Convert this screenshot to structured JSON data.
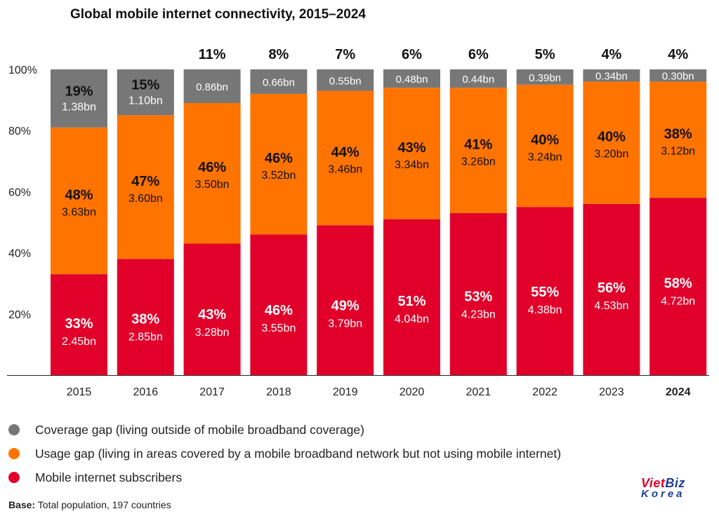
{
  "title": "Global mobile internet connectivity, 2015–2024",
  "colors": {
    "coverage": "#777777",
    "usage": "#ff7300",
    "subscribers": "#e0002a"
  },
  "legend": [
    {
      "key": "coverage",
      "label": "Coverage gap (living outside of mobile broadband coverage)"
    },
    {
      "key": "usage",
      "label": "Usage gap (living in areas covered by a mobile broadband network but not using mobile internet)"
    },
    {
      "key": "subscribers",
      "label": "Mobile internet subscribers"
    }
  ],
  "base": {
    "label": "Base:",
    "text": "Total population, 197 countries"
  },
  "logo": {
    "line1_a": "Viet",
    "line1_b": "Biz",
    "line2": "Korea"
  },
  "chart_data": {
    "type": "bar",
    "stacked": true,
    "title": "Global mobile internet connectivity, 2015–2024",
    "categories": [
      "2015",
      "2016",
      "2017",
      "2018",
      "2019",
      "2020",
      "2021",
      "2022",
      "2023",
      "2024"
    ],
    "highlight_category": "2024",
    "yticks": [
      "100%",
      "80%",
      "60%",
      "40%",
      "20%"
    ],
    "ylim": [
      0,
      100
    ],
    "series": [
      {
        "name": "Mobile internet subscribers",
        "key": "subscribers",
        "values": [
          33,
          38,
          43,
          46,
          49,
          51,
          53,
          55,
          56,
          58
        ],
        "labels": [
          "33%",
          "38%",
          "43%",
          "46%",
          "49%",
          "51%",
          "53%",
          "55%",
          "56%",
          "58%"
        ],
        "counts": [
          "2.45bn",
          "2.85bn",
          "3.28bn",
          "3.55bn",
          "3.79bn",
          "4.04bn",
          "4.23bn",
          "4.38bn",
          "4.53bn",
          "4.72bn"
        ]
      },
      {
        "name": "Usage gap",
        "key": "usage",
        "values": [
          48,
          47,
          46,
          46,
          44,
          43,
          41,
          40,
          40,
          38
        ],
        "labels": [
          "48%",
          "47%",
          "46%",
          "46%",
          "44%",
          "43%",
          "41%",
          "40%",
          "40%",
          "38%"
        ],
        "counts": [
          "3.63bn",
          "3.60bn",
          "3.50bn",
          "3.52bn",
          "3.46bn",
          "3.34bn",
          "3.26bn",
          "3.24bn",
          "3.20bn",
          "3.12bn"
        ]
      },
      {
        "name": "Coverage gap",
        "key": "coverage",
        "values": [
          19,
          15,
          11,
          8,
          7,
          6,
          6,
          5,
          4,
          4
        ],
        "labels": [
          "19%",
          "15%",
          "11%",
          "8%",
          "7%",
          "6%",
          "6%",
          "5%",
          "4%",
          "4%"
        ],
        "counts": [
          "1.38bn",
          "1.10bn",
          "0.86bn",
          "0.66bn",
          "0.55bn",
          "0.48bn",
          "0.44bn",
          "0.39bn",
          "0.34bn",
          "0.30bn"
        ]
      }
    ]
  }
}
